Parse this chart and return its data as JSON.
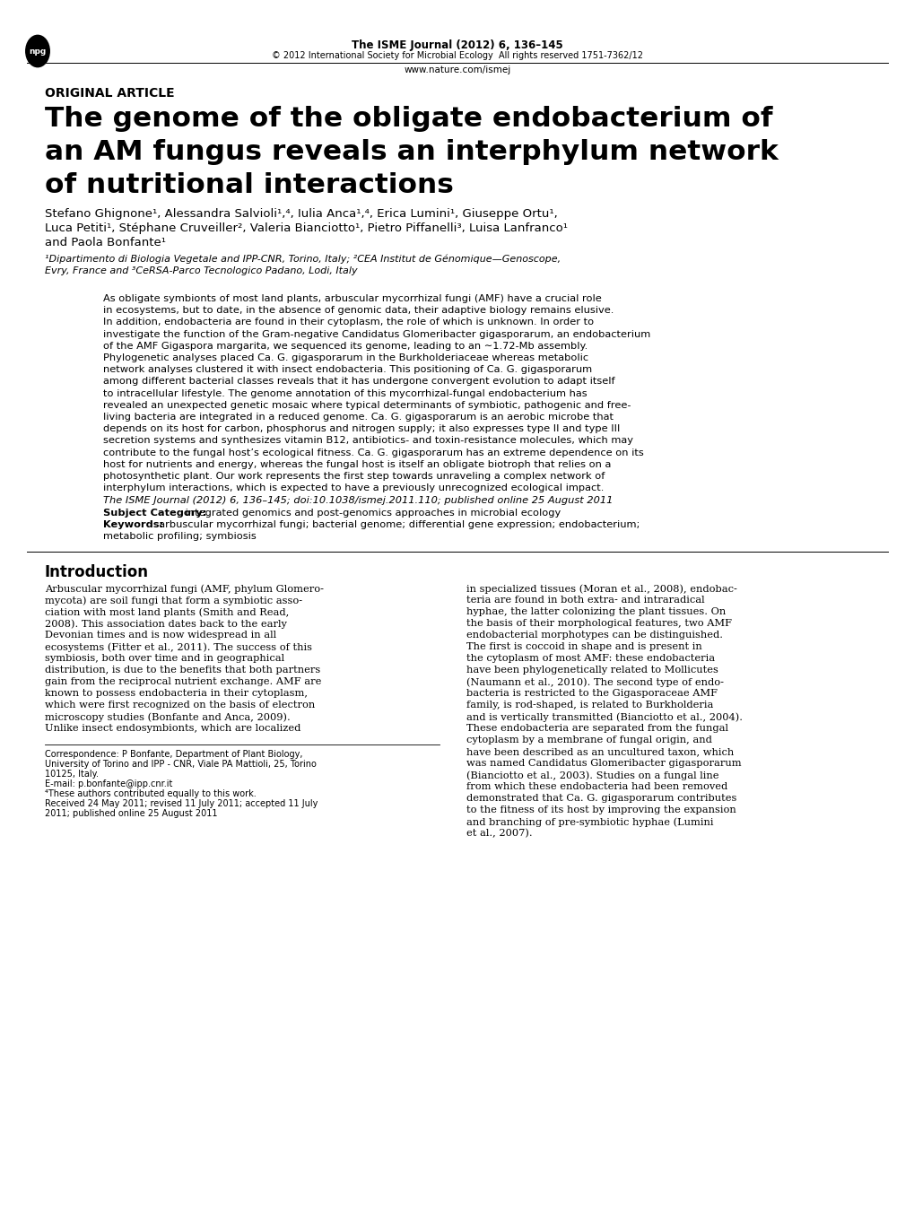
{
  "bg_color": "#ffffff",
  "header_journal": "The ISME Journal (2012) 6, 136–145",
  "header_copyright": "© 2012 International Society for Microbial Ecology  All rights reserved 1751-7362/12",
  "header_url": "www.nature.com/ismej",
  "article_type": "ORIGINAL ARTICLE",
  "title_line1": "The genome of the obligate endobacterium of",
  "title_line2": "an AM fungus reveals an interphylum network",
  "title_line3": "of nutritional interactions",
  "authors": "Stefano Ghignone¹, Alessandra Salvioli¹,⁴, Iulia Anca¹,⁴, Erica Lumini¹, Giuseppe Ortu¹,",
  "authors2": "Luca Petiti¹, Stéphane Cruveiller², Valeria Bianciotto¹, Pietro Piffanelli³, Luisa Lanfranco¹",
  "authors3": "and Paola Bonfante¹",
  "affiliation1": "¹Dipartimento di Biologia Vegetale and IPP-CNR, Torino, Italy; ²CEA Institut de Génomique—Genoscope,",
  "affiliation2": "Evry, France and ³CeRSA-Parco Tecnologico Padano, Lodi, Italy",
  "abstract_lines": [
    "As obligate symbionts of most land plants, arbuscular mycorrhizal fungi (AMF) have a crucial role",
    "in ecosystems, but to date, in the absence of genomic data, their adaptive biology remains elusive.",
    "In addition, endobacteria are found in their cytoplasm, the role of which is unknown. In order to",
    "investigate the function of the Gram-negative Candidatus Glomeribacter gigasporarum, an endobacterium",
    "of the AMF Gigaspora margarita, we sequenced its genome, leading to an ∼1.72-Mb assembly.",
    "Phylogenetic analyses placed Ca. G. gigasporarum in the Burkholderiaceae whereas metabolic",
    "network analyses clustered it with insect endobacteria. This positioning of Ca. G. gigasporarum",
    "among different bacterial classes reveals that it has undergone convergent evolution to adapt itself",
    "to intracellular lifestyle. The genome annotation of this mycorrhizal-fungal endobacterium has",
    "revealed an unexpected genetic mosaic where typical determinants of symbiotic, pathogenic and free-",
    "living bacteria are integrated in a reduced genome. Ca. G. gigasporarum is an aerobic microbe that",
    "depends on its host for carbon, phosphorus and nitrogen supply; it also expresses type II and type III",
    "secretion systems and synthesizes vitamin B12, antibiotics- and toxin-resistance molecules, which may",
    "contribute to the fungal host’s ecological fitness. Ca. G. gigasporarum has an extreme dependence on its",
    "host for nutrients and energy, whereas the fungal host is itself an obligate biotroph that relies on a",
    "photosynthetic plant. Our work represents the first step towards unraveling a complex network of",
    "interphylum interactions, which is expected to have a previously unrecognized ecological impact."
  ],
  "citation_line": "The ISME Journal (2012) 6, 136–145; doi:10.1038/ismej.2011.110; published online 25 August 2011",
  "subject_label": "Subject Category:",
  "subject_rest": " integrated genomics and post-genomics approaches in microbial ecology",
  "keywords_label": "Keywords:",
  "keywords_rest": "  arbuscular mycorrhizal fungi; bacterial genome; differential gene expression; endobacterium;",
  "keywords2": "metabolic profiling; symbiosis",
  "intro_heading": "Introduction",
  "intro_left": [
    "Arbuscular mycorrhizal fungi (AMF, phylum Glomero-",
    "mycota) are soil fungi that form a symbiotic asso-",
    "ciation with most land plants (Smith and Read,",
    "2008). This association dates back to the early",
    "Devonian times and is now widespread in all",
    "ecosystems (Fitter et al., 2011). The success of this",
    "symbiosis, both over time and in geographical",
    "distribution, is due to the benefits that both partners",
    "gain from the reciprocal nutrient exchange. AMF are",
    "known to possess endobacteria in their cytoplasm,",
    "which were first recognized on the basis of electron",
    "microscopy studies (Bonfante and Anca, 2009).",
    "Unlike insect endosymbionts, which are localized"
  ],
  "intro_right": [
    "in specialized tissues (Moran et al., 2008), endobac-",
    "teria are found in both extra- and intraradical",
    "hyphae, the latter colonizing the plant tissues. On",
    "the basis of their morphological features, two AMF",
    "endobacterial morphotypes can be distinguished.",
    "The first is coccoid in shape and is present in",
    "the cytoplasm of most AMF: these endobacteria",
    "have been phylogenetically related to Mollicutes",
    "(Naumann et al., 2010). The second type of endo-",
    "bacteria is restricted to the Gigasporaceae AMF",
    "family, is rod-shaped, is related to Burkholderia",
    "and is vertically transmitted (Bianciotto et al., 2004).",
    "These endobacteria are separated from the fungal",
    "cytoplasm by a membrane of fungal origin, and",
    "have been described as an uncultured taxon, which",
    "was named Candidatus Glomeribacter gigasporarum",
    "(Bianciotto et al., 2003). Studies on a fungal line",
    "from which these endobacteria had been removed",
    "demonstrated that Ca. G. gigasporarum contributes",
    "to the fitness of its host by improving the expansion",
    "and branching of pre-symbiotic hyphae (Lumini",
    "et al., 2007)."
  ],
  "footer_lines": [
    "Correspondence: P Bonfante, Department of Plant Biology,",
    "University of Torino and IPP - CNR, Viale PA Mattioli, 25, Torino",
    "10125, Italy.",
    "E-mail: p.bonfante@ipp.cnr.it",
    "⁴These authors contributed equally to this work.",
    "Received 24 May 2011; revised 11 July 2011; accepted 11 July",
    "2011; published online 25 August 2011"
  ]
}
